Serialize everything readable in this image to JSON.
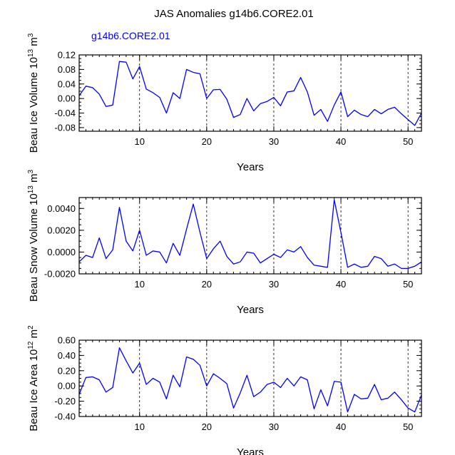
{
  "title": "JAS Anomalies g14b6.CORE2.01",
  "legend_label": "g14b6.CORE2.01",
  "colors": {
    "series": "#0000ff",
    "axis": "#000000",
    "grid": "#000000"
  },
  "chart_data": [
    {
      "type": "line",
      "ylabel_main": "Beau Ice Volume 10",
      "ylabel_exp1": "13",
      "ylabel_unit": " m",
      "ylabel_exp2": "3",
      "xlabel": "Years",
      "xlim": [
        1,
        52
      ],
      "ylim": [
        -0.09,
        0.12
      ],
      "yticks": [
        0.12,
        0.08,
        0.04,
        0.0,
        -0.04,
        -0.08
      ],
      "ytick_labels": [
        "0.12",
        "0.08",
        "0.04",
        "0.00",
        "-0.04",
        "-0.08"
      ],
      "xticks": [
        10,
        20,
        30,
        40,
        50
      ],
      "xtick_labels": [
        "10",
        "20",
        "30",
        "40",
        "50"
      ],
      "x": [
        1,
        2,
        3,
        4,
        5,
        6,
        7,
        8,
        9,
        10,
        11,
        12,
        13,
        14,
        15,
        16,
        17,
        18,
        19,
        20,
        21,
        22,
        23,
        24,
        25,
        26,
        27,
        28,
        29,
        30,
        31,
        32,
        33,
        34,
        35,
        36,
        37,
        38,
        39,
        40,
        41,
        42,
        43,
        44,
        45,
        46,
        47,
        48,
        49,
        50,
        51,
        52
      ],
      "values": [
        0.008,
        0.034,
        0.03,
        0.012,
        -0.022,
        -0.018,
        0.102,
        0.1,
        0.054,
        0.088,
        0.026,
        0.016,
        0.003,
        -0.04,
        0.016,
        0.0,
        0.08,
        0.072,
        0.068,
        0.0,
        0.024,
        0.025,
        -0.002,
        -0.052,
        -0.044,
        0.0,
        -0.034,
        -0.014,
        -0.008,
        0.003,
        -0.02,
        0.018,
        0.021,
        0.058,
        0.018,
        -0.046,
        -0.03,
        -0.063,
        -0.018,
        0.018,
        -0.05,
        -0.032,
        -0.044,
        -0.05,
        -0.03,
        -0.042,
        -0.03,
        -0.024,
        -0.042,
        -0.058,
        -0.074,
        -0.04
      ]
    },
    {
      "type": "line",
      "ylabel_main": "Beau Snow Volume 10",
      "ylabel_exp1": "13",
      "ylabel_unit": " m",
      "ylabel_exp2": "3",
      "xlabel": "Years",
      "xlim": [
        1,
        52
      ],
      "ylim": [
        -0.002,
        0.005
      ],
      "yticks": [
        0.004,
        0.002,
        0.0,
        -0.002
      ],
      "ytick_labels": [
        "0.0040",
        "0.0020",
        "0.0000",
        "-0.0020"
      ],
      "xticks": [
        10,
        20,
        30,
        40,
        50
      ],
      "xtick_labels": [
        "10",
        "20",
        "30",
        "40",
        "50"
      ],
      "x": [
        1,
        2,
        3,
        4,
        5,
        6,
        7,
        8,
        9,
        10,
        11,
        12,
        13,
        14,
        15,
        16,
        17,
        18,
        19,
        20,
        21,
        22,
        23,
        24,
        25,
        26,
        27,
        28,
        29,
        30,
        31,
        32,
        33,
        34,
        35,
        36,
        37,
        38,
        39,
        40,
        41,
        42,
        43,
        44,
        45,
        46,
        47,
        48,
        49,
        50,
        51,
        52
      ],
      "values": [
        -0.0009,
        -0.0003,
        -0.0005,
        0.0013,
        -0.0006,
        0.0002,
        0.0041,
        0.001,
        0.0001,
        0.002,
        -0.0003,
        0.0001,
        0.0,
        -0.001,
        0.0008,
        -0.0003,
        0.0021,
        0.0044,
        0.0018,
        -0.0006,
        0.0003,
        0.001,
        -0.0004,
        -0.0011,
        -0.0009,
        0.0,
        -0.0001,
        -0.001,
        -0.0006,
        -0.0002,
        -0.0005,
        0.0002,
        0.0,
        0.0005,
        -0.0005,
        -0.0012,
        -0.0013,
        -0.0014,
        0.0048,
        0.0018,
        -0.0014,
        -0.0011,
        -0.0014,
        -0.0013,
        -0.0004,
        -0.0006,
        -0.0013,
        -0.0011,
        -0.0015,
        -0.0015,
        -0.0013,
        -0.0009
      ]
    },
    {
      "type": "line",
      "ylabel_main": "Beau Ice Area 10",
      "ylabel_exp1": "12",
      "ylabel_unit": " m",
      "ylabel_exp2": "2",
      "xlabel": "Years",
      "xlim": [
        1,
        52
      ],
      "ylim": [
        -0.4,
        0.6
      ],
      "yticks": [
        0.6,
        0.4,
        0.2,
        0.0,
        -0.2,
        -0.4
      ],
      "ytick_labels": [
        "0.60",
        "0.40",
        "0.20",
        "0.00",
        "-0.20",
        "-0.40"
      ],
      "xticks": [
        10,
        20,
        30,
        40,
        50
      ],
      "xtick_labels": [
        "10",
        "20",
        "30",
        "40",
        "50"
      ],
      "x": [
        1,
        2,
        3,
        4,
        5,
        6,
        7,
        8,
        9,
        10,
        11,
        12,
        13,
        14,
        15,
        16,
        17,
        18,
        19,
        20,
        21,
        22,
        23,
        24,
        25,
        26,
        27,
        28,
        29,
        30,
        31,
        32,
        33,
        34,
        35,
        36,
        37,
        38,
        39,
        40,
        41,
        42,
        43,
        44,
        45,
        46,
        47,
        48,
        49,
        50,
        51,
        52
      ],
      "values": [
        -0.11,
        0.11,
        0.12,
        0.08,
        -0.08,
        -0.02,
        0.5,
        0.33,
        0.17,
        0.3,
        0.02,
        0.1,
        0.05,
        -0.17,
        0.14,
        -0.01,
        0.38,
        0.35,
        0.27,
        0.0,
        0.16,
        0.1,
        0.03,
        -0.29,
        -0.09,
        0.14,
        -0.14,
        -0.08,
        0.02,
        0.05,
        -0.02,
        0.1,
        0.0,
        0.12,
        0.08,
        -0.3,
        -0.05,
        -0.26,
        0.06,
        0.05,
        -0.34,
        -0.11,
        -0.17,
        -0.16,
        0.02,
        -0.18,
        -0.16,
        -0.08,
        -0.18,
        -0.29,
        -0.34,
        -0.12
      ]
    }
  ]
}
